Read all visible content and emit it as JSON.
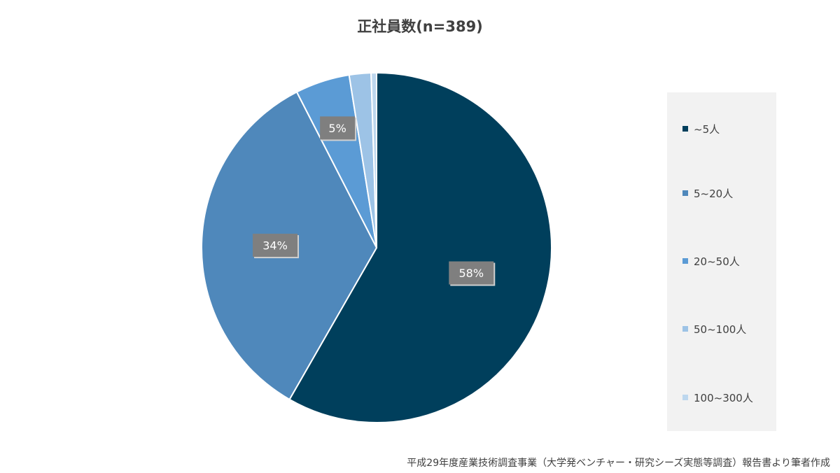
{
  "chart_data": {
    "type": "pie",
    "title": "正社員数(n=389)",
    "slices": [
      {
        "label": "~5人",
        "value": 58,
        "data_label": "58%",
        "color": "#003f5c"
      },
      {
        "label": "5~20人",
        "value": 34,
        "data_label": "34%",
        "color": "#4f88bb"
      },
      {
        "label": "20~50人",
        "value": 5,
        "data_label": "5%",
        "color": "#5b9bd5"
      },
      {
        "label": "50~100人",
        "value": 2,
        "data_label": "",
        "color": "#9dc3e6"
      },
      {
        "label": "100~300人",
        "value": 0.5,
        "data_label": "",
        "color": "#bdd7ee"
      }
    ],
    "legend_position": "right",
    "label_box_color": "#7f7f7f"
  },
  "source_note": "平成29年度産業技術調査事業（大学発ベンチャー・研究シーズ実態等調査）報告書より筆者作成"
}
